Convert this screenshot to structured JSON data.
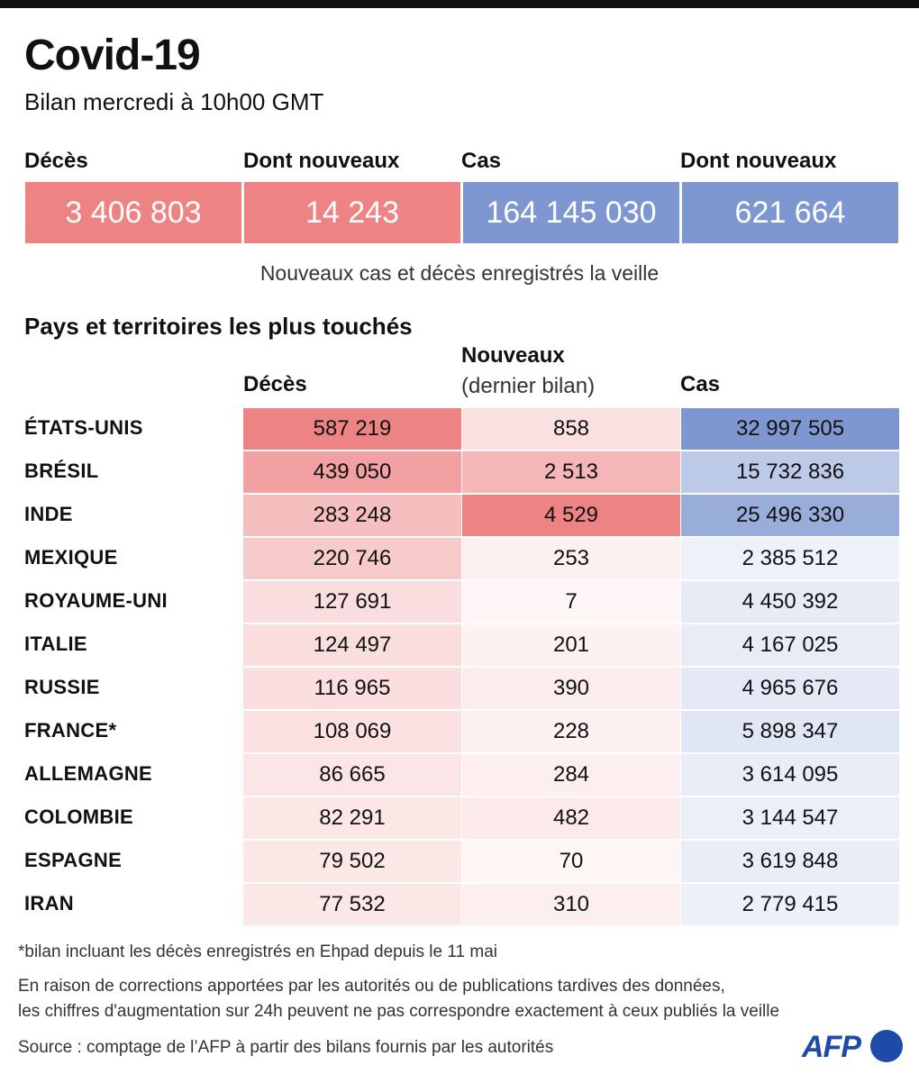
{
  "title": "Covid-19",
  "subtitle": "Bilan mercredi à 10h00 GMT",
  "summary": {
    "deaths_label": "Décès",
    "deaths_value": "3 406 803",
    "new_deaths_label": "Dont nouveaux",
    "new_deaths_value": "14 243",
    "cases_label": "Cas",
    "cases_value": "164 145 030",
    "new_cases_label": "Dont nouveaux",
    "new_cases_value": "621 664",
    "note": "Nouveaux cas et décès enregistrés la veille"
  },
  "colors": {
    "deaths_accent": "#ee8384",
    "cases_accent": "#7e97d0"
  },
  "table": {
    "section_title": "Pays et territoires les plus touchés",
    "col_deaths": "Décès",
    "col_new": "Nouveaux",
    "col_new_sub": "(dernier bilan)",
    "col_cases": "Cas"
  },
  "chart_data": {
    "type": "table",
    "columns": [
      "Décès",
      "Nouveaux (dernier bilan)",
      "Cas"
    ],
    "rows": [
      {
        "country": "ÉTATS-UNIS",
        "deaths": "587 219",
        "new": "858",
        "cases": "32 997 505"
      },
      {
        "country": "BRÉSIL",
        "deaths": "439 050",
        "new": "2 513",
        "cases": "15 732 836"
      },
      {
        "country": "INDE",
        "deaths": "283 248",
        "new": "4 529",
        "cases": "25 496 330"
      },
      {
        "country": "MEXIQUE",
        "deaths": "220 746",
        "new": "253",
        "cases": "2 385 512"
      },
      {
        "country": "ROYAUME-UNI",
        "deaths": "127 691",
        "new": "7",
        "cases": "4 450 392"
      },
      {
        "country": "ITALIE",
        "deaths": "124 497",
        "new": "201",
        "cases": "4 167 025"
      },
      {
        "country": "RUSSIE",
        "deaths": "116 965",
        "new": "390",
        "cases": "4 965 676"
      },
      {
        "country": "FRANCE*",
        "deaths": "108 069",
        "new": "228",
        "cases": "5 898 347"
      },
      {
        "country": "ALLEMAGNE",
        "deaths": "86 665",
        "new": "284",
        "cases": "3 614 095"
      },
      {
        "country": "COLOMBIE",
        "deaths": "82 291",
        "new": "482",
        "cases": "3 144 547"
      },
      {
        "country": "ESPAGNE",
        "deaths": "79 502",
        "new": "70",
        "cases": "3 619 848"
      },
      {
        "country": "IRAN",
        "deaths": "77 532",
        "new": "310",
        "cases": "2 779 415"
      }
    ]
  },
  "footer": {
    "note1": "*bilan incluant les décès enregistrés en Ehpad depuis le 11 mai",
    "note2": "En raison de corrections apportées par les autorités ou de publications tardives des données,",
    "note3": "les chiffres d'augmentation sur 24h peuvent ne pas correspondre exactement à ceux publiés la veille",
    "source": "Source : comptage de l’AFP à partir des bilans fournis par les autorités",
    "logo": "AFP"
  }
}
